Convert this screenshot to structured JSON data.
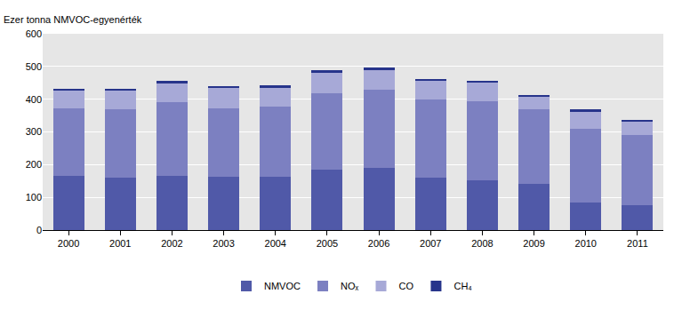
{
  "chart_data": {
    "type": "bar",
    "stacked": true,
    "y_label": "Ezer tonna NMVOC-egyenérték",
    "categories": [
      "2000",
      "2001",
      "2002",
      "2003",
      "2004",
      "2005",
      "2006",
      "2007",
      "2008",
      "2009",
      "2010",
      "2011"
    ],
    "series": [
      {
        "name": "NMVOC",
        "color": "#5059a8",
        "values": [
          165,
          160,
          165,
          163,
          163,
          185,
          190,
          160,
          152,
          140,
          85,
          75
        ]
      },
      {
        "name": "NOₓ",
        "color": "#7c80c1",
        "values": [
          207,
          208,
          225,
          210,
          214,
          233,
          238,
          238,
          241,
          228,
          225,
          215
        ]
      },
      {
        "name": "CO",
        "color": "#a7a9d7",
        "values": [
          56,
          60,
          60,
          62,
          60,
          65,
          62,
          59,
          59,
          40,
          53,
          43
        ]
      },
      {
        "name": "CH₄",
        "color": "#27348b",
        "values": [
          5,
          4,
          5,
          4,
          5,
          5,
          6,
          5,
          4,
          5,
          5,
          5
        ]
      }
    ],
    "ylim": [
      0,
      600
    ],
    "yticks": [
      0,
      100,
      200,
      300,
      400,
      500,
      600
    ],
    "grid": true,
    "legend": "bottom"
  }
}
